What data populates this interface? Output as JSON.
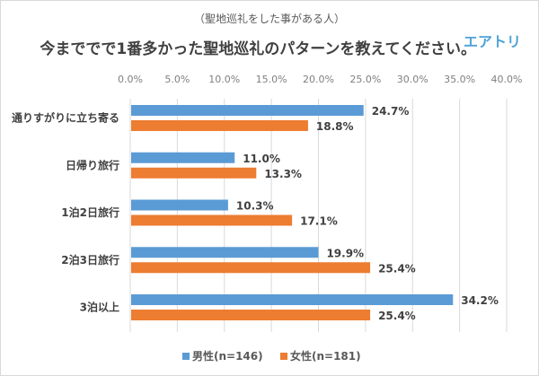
{
  "chart_data": {
    "type": "bar",
    "orientation": "horizontal",
    "subtitle": "（聖地巡礼をした事がある人）",
    "title": "今まででで1番多かった聖地巡礼のパターンを教えてください。",
    "brand": "エアトリ",
    "categories": [
      "通りすがりに立ち寄る",
      "日帰り旅行",
      "1泊2日旅行",
      "2泊3日旅行",
      "3泊以上"
    ],
    "series": [
      {
        "name": "男性(n=146)",
        "color": "#5b9bd5",
        "values": [
          24.7,
          11.0,
          10.3,
          19.9,
          34.2
        ],
        "labels": [
          "24.7%",
          "11.0%",
          "10.3%",
          "19.9%",
          "34.2%"
        ]
      },
      {
        "name": "女性(n=181)",
        "color": "#ed7d31",
        "values": [
          18.8,
          13.3,
          17.1,
          25.4,
          25.4
        ],
        "labels": [
          "18.8%",
          "13.3%",
          "17.1%",
          "25.4%",
          "25.4%"
        ]
      }
    ],
    "xlim": [
      0,
      40
    ],
    "xticks": [
      "0.0%",
      "5.0%",
      "10.0%",
      "15.0%",
      "20.0%",
      "25.0%",
      "30.0%",
      "35.0%",
      "40.0%"
    ],
    "xtick_values": [
      0,
      5,
      10,
      15,
      20,
      25,
      30,
      35,
      40
    ],
    "grid": true,
    "legend_position": "bottom",
    "xlabel": "",
    "ylabel": ""
  }
}
